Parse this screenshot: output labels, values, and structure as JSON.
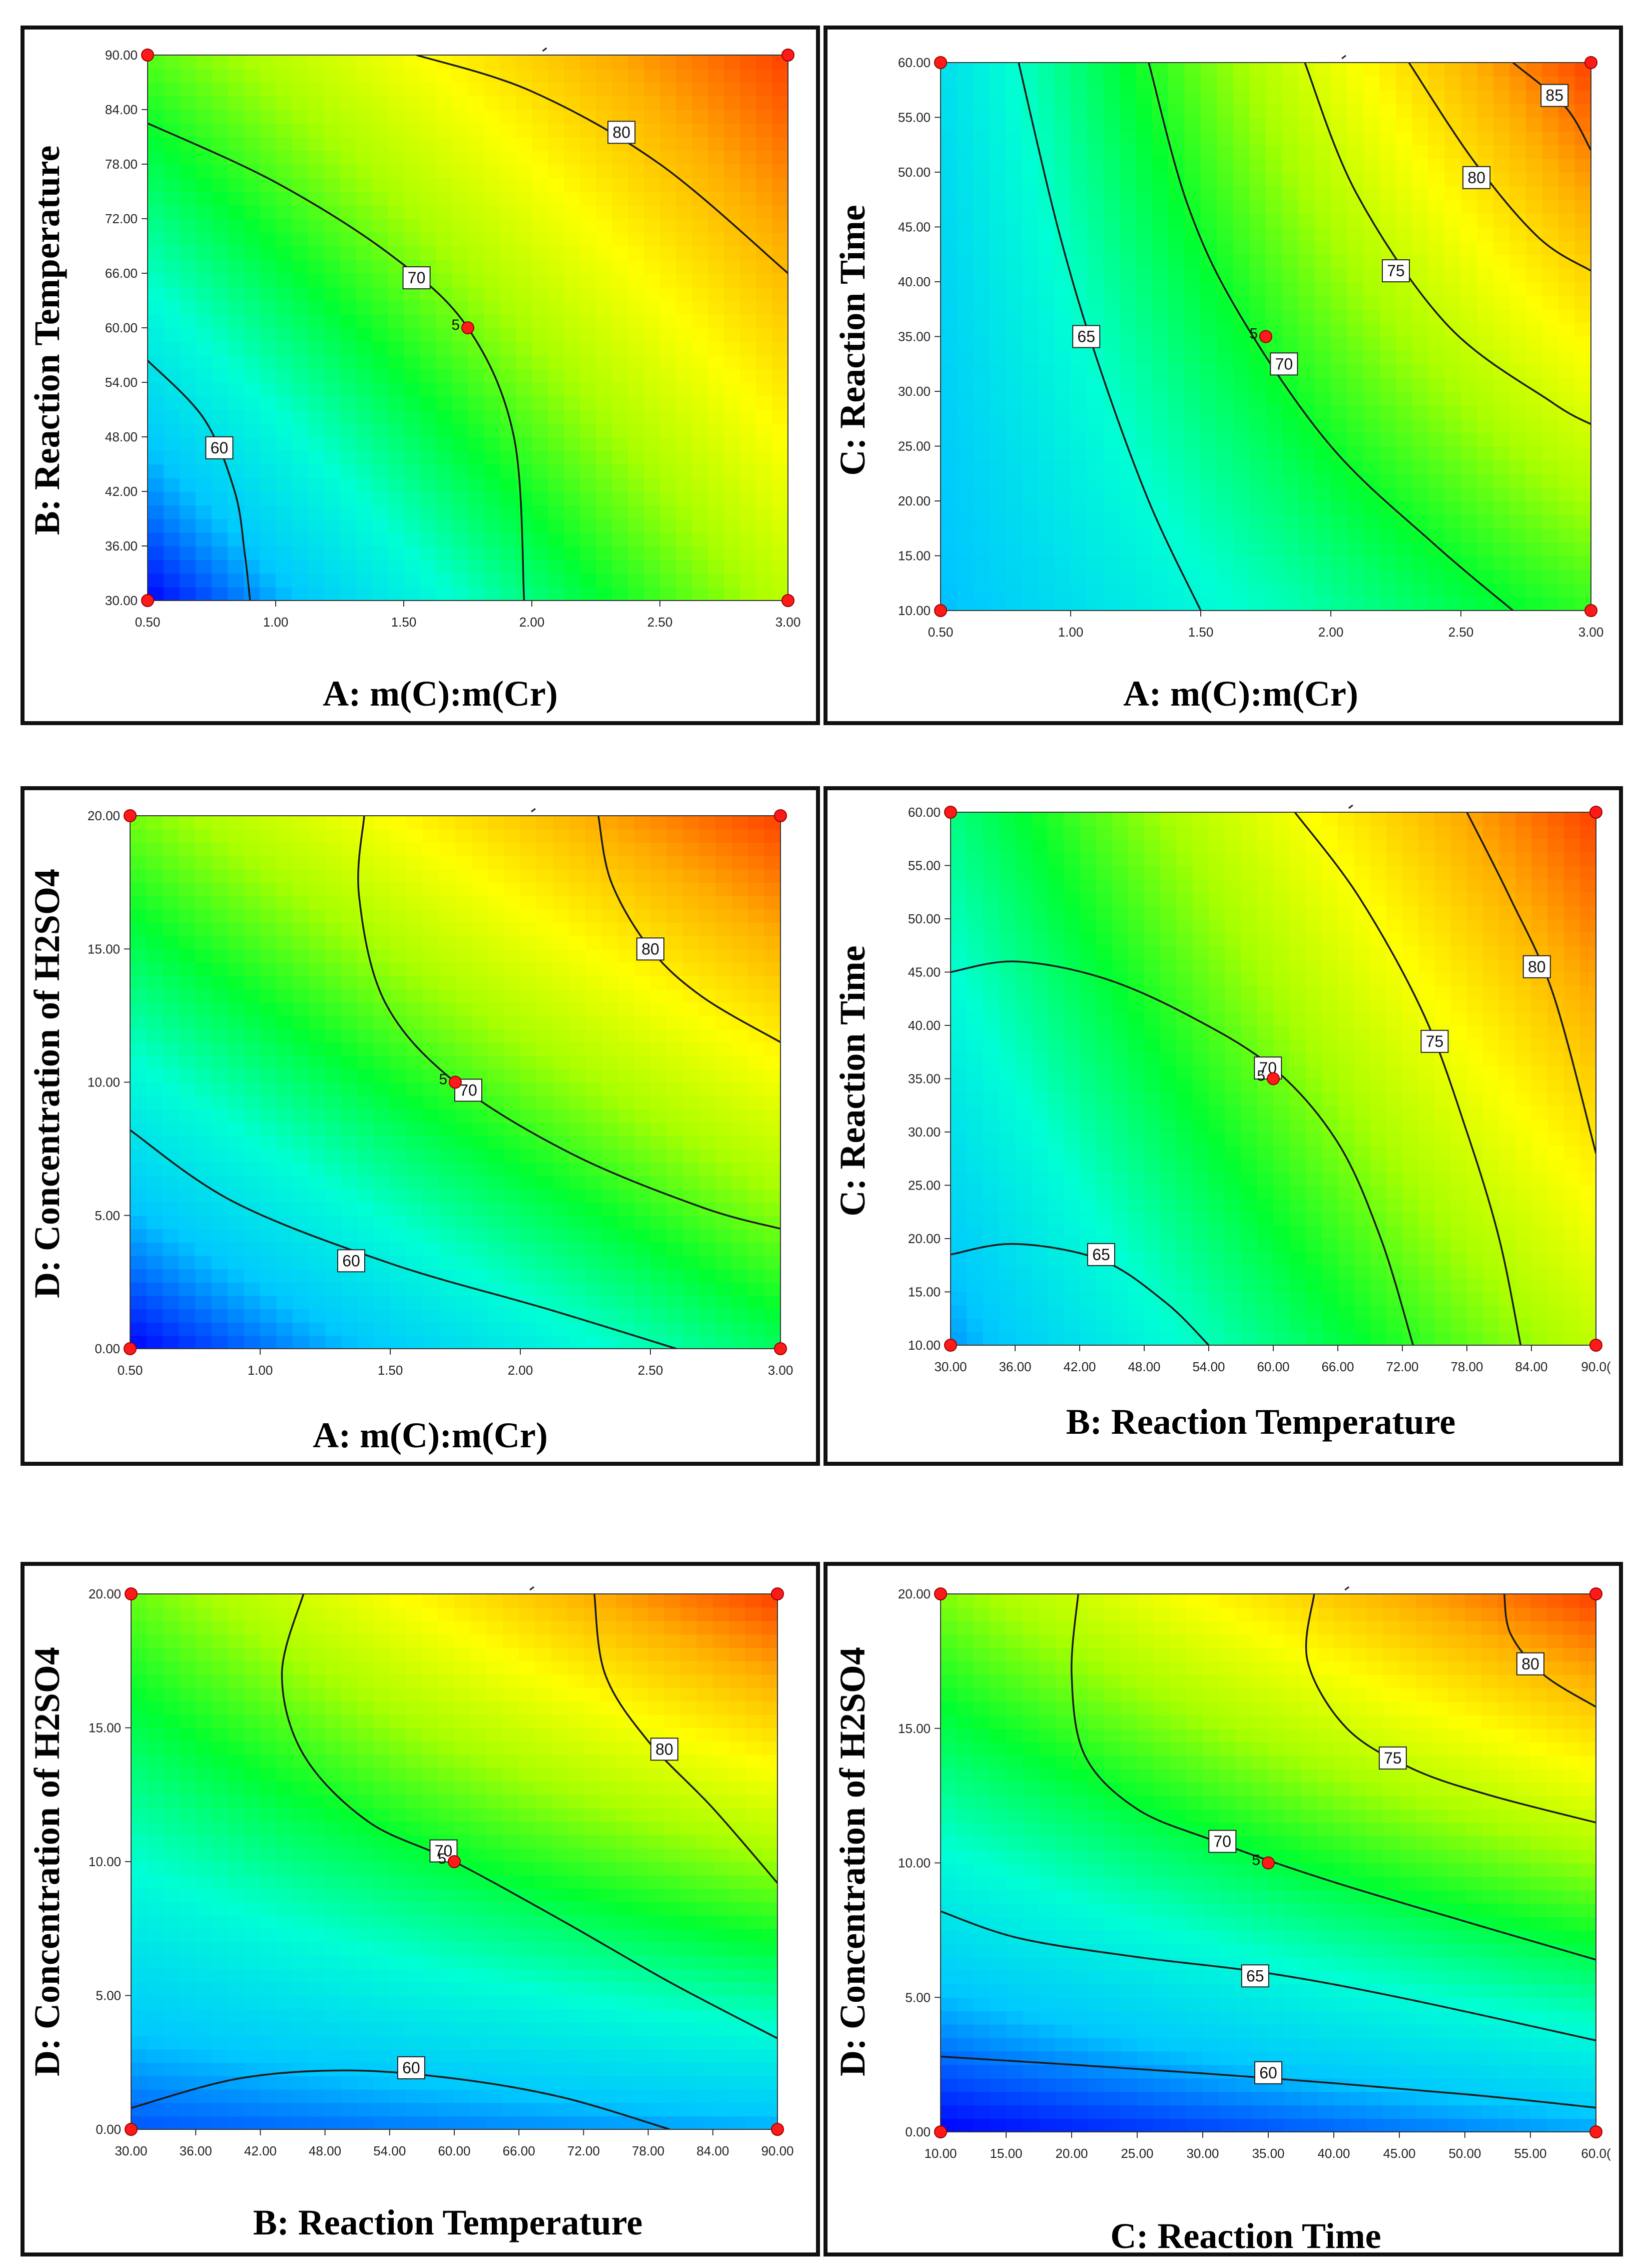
{
  "colors": {
    "frame": "#111111",
    "contour": "#1a1a1a",
    "design_point": "#ff1a1a",
    "colormap": [
      "#0000ff",
      "#00c8ff",
      "#00ffd4",
      "#00ff30",
      "#a8ff00",
      "#ffff00",
      "#ffb000",
      "#ff4000"
    ]
  },
  "chart_data": [
    {
      "type": "contour",
      "id": "AB",
      "xlabel": "A:  m(C):m(Cr)",
      "ylabel": "B: Reaction Temperature",
      "xlim": [
        0.5,
        3.0
      ],
      "ylim": [
        30,
        90
      ],
      "xticks": [
        "0.50",
        "1.00",
        "1.50",
        "2.00",
        "2.50",
        "3.00"
      ],
      "yticks": [
        "30.00",
        "36.00",
        "42.00",
        "48.00",
        "54.00",
        "60.00",
        "66.00",
        "72.00",
        "78.00",
        "84.00",
        "90.00"
      ],
      "response_range": [
        56,
        86
      ],
      "corners": {
        "x0y0": 56,
        "x1y0": 74,
        "x0y1": 71,
        "x1y1": 86
      },
      "contours": [
        {
          "label": "60",
          "label_at": [
            0.78,
            46.8
          ],
          "points": [
            [
              0.5,
              56.4
            ],
            [
              0.72,
              50
            ],
            [
              0.84,
              42
            ],
            [
              0.88,
              35
            ],
            [
              0.9,
              30
            ]
          ]
        },
        {
          "label": "70",
          "label_at": [
            1.55,
            65.5
          ],
          "points": [
            [
              0.5,
              82.5
            ],
            [
              1.0,
              76
            ],
            [
              1.45,
              68
            ],
            [
              1.75,
              60
            ],
            [
              1.93,
              48
            ],
            [
              1.97,
              30
            ]
          ]
        },
        {
          "label": "80",
          "label_at": [
            2.35,
            81.5
          ],
          "points": [
            [
              1.55,
              90
            ],
            [
              2.0,
              86
            ],
            [
              2.5,
              78
            ],
            [
              3.0,
              66
            ]
          ]
        }
      ],
      "center_point": {
        "x": 1.75,
        "y": 60,
        "label": "5"
      },
      "design_points": [
        [
          0.5,
          30
        ],
        [
          0.5,
          90
        ],
        [
          3.0,
          30
        ],
        [
          3.0,
          90
        ]
      ]
    },
    {
      "type": "contour",
      "id": "AC",
      "xlabel": "A:  m(C):m(Cr)",
      "ylabel": "C: Reaction Time",
      "xlim": [
        0.5,
        3.0
      ],
      "ylim": [
        10,
        60
      ],
      "xticks": [
        "0.50",
        "1.00",
        "1.50",
        "2.00",
        "2.50",
        "3.00"
      ],
      "yticks": [
        "10.00",
        "15.00",
        "20.00",
        "25.00",
        "30.00",
        "35.00",
        "40.00",
        "45.00",
        "50.00",
        "55.00",
        "60.00"
      ],
      "response_range": [
        58,
        88
      ],
      "corners": {
        "x0y0": 62,
        "x1y0": 72,
        "x0y1": 64,
        "x1y1": 88
      },
      "contours": [
        {
          "label": "65",
          "label_at": [
            1.06,
            35
          ],
          "points": [
            [
              0.8,
              60
            ],
            [
              0.95,
              45
            ],
            [
              1.1,
              33
            ],
            [
              1.3,
              20
            ],
            [
              1.5,
              10
            ]
          ]
        },
        {
          "label": "70",
          "label_at": [
            1.82,
            32.5
          ],
          "points": [
            [
              1.3,
              60
            ],
            [
              1.45,
              47
            ],
            [
              1.65,
              37
            ],
            [
              2.0,
              25
            ],
            [
              2.4,
              16
            ],
            [
              2.7,
              10
            ]
          ]
        },
        {
          "label": "75",
          "label_at": [
            2.25,
            41
          ],
          "points": [
            [
              1.9,
              60
            ],
            [
              2.1,
              48
            ],
            [
              2.45,
              36
            ],
            [
              2.85,
              29
            ],
            [
              3.0,
              27
            ]
          ]
        },
        {
          "label": "80",
          "label_at": [
            2.56,
            49.5
          ],
          "points": [
            [
              2.3,
              60
            ],
            [
              2.55,
              51
            ],
            [
              2.8,
              44
            ],
            [
              3.0,
              41
            ]
          ]
        },
        {
          "label": "85",
          "label_at": [
            2.86,
            57
          ],
          "points": [
            [
              2.7,
              60
            ],
            [
              2.9,
              56
            ],
            [
              3.0,
              52
            ]
          ]
        }
      ],
      "center_point": {
        "x": 1.75,
        "y": 35,
        "label": "5"
      },
      "design_points": [
        [
          0.5,
          10
        ],
        [
          0.5,
          60
        ],
        [
          3.0,
          10
        ],
        [
          3.0,
          60
        ]
      ]
    },
    {
      "type": "contour",
      "id": "AD",
      "xlabel": "A:  m(C):m(Cr)",
      "ylabel": "D: Concentration of H2SO4",
      "xlim": [
        0.5,
        3.0
      ],
      "ylim": [
        0,
        20
      ],
      "xticks": [
        "0.50",
        "1.00",
        "1.50",
        "2.00",
        "2.50",
        "3.00"
      ],
      "yticks": [
        "0.00",
        "5.00",
        "10.00",
        "15.00",
        "20.00"
      ],
      "response_range": [
        50,
        86
      ],
      "corners": {
        "x0y0": 50,
        "x1y0": 64,
        "x0y1": 69,
        "x1y1": 86
      },
      "contours": [
        {
          "label": "60",
          "label_at": [
            1.35,
            3.3
          ],
          "points": [
            [
              0.5,
              8.2
            ],
            [
              0.9,
              5.5
            ],
            [
              1.5,
              3.2
            ],
            [
              2.1,
              1.5
            ],
            [
              2.6,
              0
            ]
          ]
        },
        {
          "label": "70",
          "label_at": [
            1.8,
            9.7
          ],
          "points": [
            [
              1.4,
              20
            ],
            [
              1.38,
              17
            ],
            [
              1.48,
              13
            ],
            [
              1.75,
              10
            ],
            [
              2.2,
              7.3
            ],
            [
              2.7,
              5.3
            ],
            [
              3.0,
              4.5
            ]
          ]
        },
        {
          "label": "80",
          "label_at": [
            2.5,
            15
          ],
          "points": [
            [
              2.3,
              20
            ],
            [
              2.35,
              17.5
            ],
            [
              2.5,
              15
            ],
            [
              2.7,
              13.2
            ],
            [
              3.0,
              11.5
            ]
          ]
        }
      ],
      "center_point": {
        "x": 1.75,
        "y": 10,
        "label": "5"
      },
      "design_points": [
        [
          0.5,
          0
        ],
        [
          0.5,
          20
        ],
        [
          3.0,
          0
        ],
        [
          3.0,
          20
        ]
      ]
    },
    {
      "type": "contour",
      "id": "BC",
      "xlabel": "B: Reaction Temperature",
      "ylabel": "C: Reaction Time",
      "xlim": [
        30,
        90
      ],
      "ylim": [
        10,
        60
      ],
      "xticks": [
        "30.00",
        "36.00",
        "42.00",
        "48.00",
        "54.00",
        "60.00",
        "66.00",
        "72.00",
        "78.00",
        "84.00",
        "90.0("
      ],
      "yticks": [
        "10.00",
        "15.00",
        "20.00",
        "25.00",
        "30.00",
        "35.00",
        "40.00",
        "45.00",
        "50.00",
        "55.00",
        "60.00"
      ],
      "response_range": [
        60,
        88
      ],
      "corners": {
        "x0y0": 63,
        "x1y0": 77,
        "x0y1": 70,
        "x1y1": 88
      },
      "contours": [
        {
          "label": "65",
          "label_at": [
            44,
            18.5
          ],
          "points": [
            [
              30,
              18.5
            ],
            [
              36,
              19.5
            ],
            [
              44,
              18
            ],
            [
              50,
              14
            ],
            [
              54,
              10
            ]
          ]
        },
        {
          "label": "70",
          "label_at": [
            59.5,
            36
          ],
          "points": [
            [
              30,
              45
            ],
            [
              36,
              46
            ],
            [
              44,
              44.5
            ],
            [
              52,
              41
            ],
            [
              60,
              36
            ],
            [
              66,
              29
            ],
            [
              70,
              20
            ],
            [
              73,
              10
            ]
          ]
        },
        {
          "label": "75",
          "label_at": [
            75,
            38.5
          ],
          "points": [
            [
              62,
              60
            ],
            [
              68,
              52
            ],
            [
              74,
              41
            ],
            [
              78,
              30
            ],
            [
              81,
              20
            ],
            [
              83,
              10
            ]
          ]
        },
        {
          "label": "80",
          "label_at": [
            84.5,
            45.5
          ],
          "points": [
            [
              78,
              60
            ],
            [
              82,
              52
            ],
            [
              86,
              43
            ],
            [
              90,
              28
            ]
          ]
        }
      ],
      "center_point": {
        "x": 60,
        "y": 35,
        "label": "5"
      },
      "design_points": [
        [
          30,
          10
        ],
        [
          30,
          60
        ],
        [
          90,
          10
        ],
        [
          90,
          60
        ]
      ]
    },
    {
      "type": "contour",
      "id": "BD",
      "xlabel": "B: Reaction Temperature",
      "ylabel": "D: Concentration of H2SO4",
      "xlim": [
        30,
        90
      ],
      "ylim": [
        0,
        20
      ],
      "xticks": [
        "30.00",
        "36.00",
        "42.00",
        "48.00",
        "54.00",
        "60.00",
        "66.00",
        "72.00",
        "78.00",
        "84.00",
        "90.00"
      ],
      "yticks": [
        "0.00",
        "5.00",
        "10.00",
        "15.00",
        "20.00"
      ],
      "response_range": [
        55,
        88
      ],
      "corners": {
        "x0y0": 57,
        "x1y0": 59,
        "x0y1": 72,
        "x1y1": 88
      },
      "contours": [
        {
          "label": "60",
          "label_at": [
            56,
            2.3
          ],
          "points": [
            [
              30,
              0.8
            ],
            [
              40,
              1.9
            ],
            [
              50,
              2.2
            ],
            [
              60,
              1.9
            ],
            [
              70,
              1.2
            ],
            [
              80,
              0
            ]
          ]
        },
        {
          "label": "70",
          "label_at": [
            59,
            10.4
          ],
          "points": [
            [
              46,
              20
            ],
            [
              44,
              17
            ],
            [
              46,
              14
            ],
            [
              52,
              11.5
            ],
            [
              60,
              10
            ],
            [
              70,
              7.8
            ],
            [
              80,
              5.5
            ],
            [
              90,
              3.4
            ]
          ]
        },
        {
          "label": "80",
          "label_at": [
            79.5,
            14.2
          ],
          "points": [
            [
              73,
              20
            ],
            [
              74,
              17
            ],
            [
              78,
              14.5
            ],
            [
              84,
              12
            ],
            [
              90,
              9.2
            ]
          ]
        }
      ],
      "center_point": {
        "x": 60,
        "y": 10,
        "label": "5"
      },
      "design_points": [
        [
          30,
          0
        ],
        [
          30,
          20
        ],
        [
          90,
          0
        ],
        [
          90,
          20
        ]
      ]
    },
    {
      "type": "contour",
      "id": "CD",
      "xlabel": "C:   Reaction Time",
      "ylabel": "D: Concentration of H2SO4",
      "xlim": [
        10,
        60
      ],
      "ylim": [
        0,
        20
      ],
      "xticks": [
        "10.00",
        "15.00",
        "20.00",
        "25.00",
        "30.00",
        "35.00",
        "40.00",
        "45.00",
        "50.00",
        "55.00",
        "60.0("
      ],
      "yticks": [
        "0.00",
        "5.00",
        "10.00",
        "15.00",
        "20.00"
      ],
      "response_range": [
        56,
        82
      ],
      "corners": {
        "x0y0": 56,
        "x1y0": 59,
        "x0y1": 70,
        "x1y1": 82
      },
      "contours": [
        {
          "label": "60",
          "label_at": [
            35,
            2.2
          ],
          "points": [
            [
              10,
              2.8
            ],
            [
              20,
              2.5
            ],
            [
              35,
              2.0
            ],
            [
              50,
              1.4
            ],
            [
              60,
              0.9
            ]
          ]
        },
        {
          "label": "65",
          "label_at": [
            34,
            5.8
          ],
          "points": [
            [
              10,
              8.2
            ],
            [
              16,
              7.2
            ],
            [
              25,
              6.5
            ],
            [
              35,
              5.9
            ],
            [
              45,
              5.0
            ],
            [
              60,
              3.4
            ]
          ]
        },
        {
          "label": "70",
          "label_at": [
            31.5,
            10.8
          ],
          "points": [
            [
              20.5,
              20
            ],
            [
              20,
              17
            ],
            [
              21,
              14
            ],
            [
              25,
              12
            ],
            [
              31,
              10.8
            ],
            [
              38,
              9.6
            ],
            [
              46,
              8.4
            ],
            [
              60,
              6.4
            ]
          ]
        },
        {
          "label": "75",
          "label_at": [
            44.5,
            13.9
          ],
          "points": [
            [
              38.5,
              20
            ],
            [
              38,
              17.5
            ],
            [
              41,
              15
            ],
            [
              46,
              13.5
            ],
            [
              52,
              12.5
            ],
            [
              60,
              11.5
            ]
          ]
        },
        {
          "label": "80",
          "label_at": [
            55,
            17.4
          ],
          "points": [
            [
              53,
              20
            ],
            [
              53.5,
              18.5
            ],
            [
              56,
              17
            ],
            [
              60,
              15.8
            ]
          ]
        }
      ],
      "center_point": {
        "x": 35,
        "y": 10,
        "label": "5"
      },
      "design_points": [
        [
          10,
          0
        ],
        [
          10,
          20
        ],
        [
          60,
          0
        ],
        [
          60,
          20
        ]
      ]
    }
  ]
}
